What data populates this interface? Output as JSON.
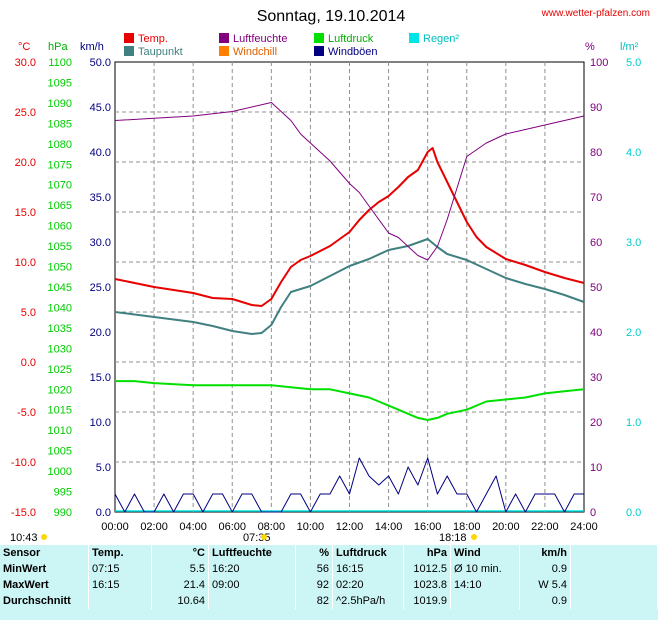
{
  "title": "Sonntag, 19.10.2014",
  "website": "www.wetter-pfalzen.com",
  "legend": [
    {
      "label": "Temp.",
      "color": "#e80000"
    },
    {
      "label": "Luftfeuchte",
      "color": "#800080"
    },
    {
      "label": "Luftdruck",
      "color": "#00e000"
    },
    {
      "label": "Regen²",
      "color": "#00e5e5"
    },
    {
      "label": "Taupunkt",
      "color": "#408080"
    },
    {
      "label": "Windchill",
      "color": "#ff8000"
    },
    {
      "label": "Windböen",
      "color": "#000080"
    }
  ],
  "axis_units": {
    "temp": "°C",
    "pressure": "hPa",
    "wind": "km/h",
    "humidity": "%",
    "rain": "l/m²"
  },
  "sun_marks": {
    "sunrise": "07:35",
    "sunset": "18:18",
    "now": "10:43"
  },
  "chart_data": {
    "type": "line",
    "x_label_ticks": [
      "00:00",
      "02:00",
      "04:00",
      "06:00",
      "08:00",
      "10:00",
      "12:00",
      "14:00",
      "16:00",
      "18:00",
      "20:00",
      "22:00",
      "24:00"
    ],
    "xlim": [
      0,
      24
    ],
    "axes": {
      "temp": {
        "range": [
          -15,
          30
        ],
        "ticks": [
          "30.0",
          "25.0",
          "20.0",
          "15.0",
          "10.0",
          "5.0",
          "0.0",
          "-5.0",
          "-10.0",
          "-15.0"
        ],
        "color": "#e80000"
      },
      "pressure": {
        "range": [
          990,
          1100
        ],
        "ticks": [
          "1100",
          "1095",
          "1090",
          "1085",
          "1080",
          "1075",
          "1070",
          "1065",
          "1060",
          "1055",
          "1050",
          "1045",
          "1040",
          "1035",
          "1030",
          "1025",
          "1020",
          "1015",
          "1010",
          "1005",
          "1000",
          "995",
          "990"
        ],
        "color": "#00cc00"
      },
      "wind": {
        "range": [
          0,
          50
        ],
        "ticks": [
          "50.0",
          "45.0",
          "40.0",
          "35.0",
          "30.0",
          "25.0",
          "20.0",
          "15.0",
          "10.0",
          "5.0",
          "0.0"
        ],
        "color": "#000080"
      },
      "humidity": {
        "range": [
          0,
          100
        ],
        "ticks": [
          "100",
          "90",
          "80",
          "70",
          "60",
          "50",
          "40",
          "30",
          "20",
          "10",
          "0"
        ],
        "color": "#800080"
      },
      "rain": {
        "range": [
          0,
          5
        ],
        "ticks": [
          "5.0",
          "4.0",
          "3.0",
          "2.0",
          "1.0",
          "0.0"
        ],
        "color": "#00cccc"
      }
    },
    "series": [
      {
        "name": "Temp.",
        "axis": "temp",
        "color": "#e80000",
        "x": [
          0,
          2,
          4,
          5,
          6,
          7,
          7.5,
          8,
          8.5,
          9,
          9.5,
          10,
          11,
          12,
          12.5,
          13,
          13.5,
          14,
          14.5,
          15,
          15.5,
          16,
          16.25,
          16.5,
          17,
          17.5,
          18,
          18.5,
          19,
          20,
          21,
          22,
          23,
          24
        ],
        "y": [
          8.3,
          7.5,
          6.9,
          6.4,
          6.3,
          5.7,
          5.6,
          6.3,
          8.0,
          9.5,
          10.2,
          10.6,
          11.6,
          13.0,
          14.2,
          15.2,
          16.0,
          16.6,
          17.5,
          18.5,
          19.2,
          21.0,
          21.4,
          20.0,
          18.0,
          16.0,
          14.0,
          12.5,
          11.5,
          10.3,
          9.7,
          9.0,
          8.4,
          7.9
        ]
      },
      {
        "name": "Taupunkt",
        "axis": "temp",
        "color": "#408080",
        "x": [
          0,
          2,
          4,
          5,
          6,
          7,
          7.5,
          8,
          8.5,
          9,
          10,
          11,
          12,
          13,
          14,
          15,
          16,
          16.5,
          17,
          18,
          19,
          20,
          21,
          22,
          23,
          24
        ],
        "y": [
          5.0,
          4.5,
          4.0,
          3.6,
          3.1,
          2.8,
          2.9,
          3.7,
          5.5,
          7.0,
          7.6,
          8.6,
          9.6,
          10.3,
          11.2,
          11.6,
          12.3,
          11.5,
          10.8,
          10.2,
          9.3,
          8.4,
          7.8,
          7.3,
          6.7,
          6.0
        ]
      },
      {
        "name": "Luftfeuchte",
        "axis": "humidity",
        "color": "#800080",
        "x": [
          0,
          2,
          4,
          6,
          8,
          9,
          9.5,
          10,
          11,
          12,
          12.5,
          13,
          13.5,
          14,
          14.5,
          15,
          15.5,
          16,
          16.5,
          17,
          17.5,
          18,
          19,
          20,
          21,
          22,
          23,
          24
        ],
        "y": [
          87,
          87.5,
          88,
          89,
          91,
          87,
          84,
          82,
          78,
          73,
          71,
          68,
          65,
          62,
          61,
          59,
          57,
          56,
          59,
          65,
          72,
          79,
          82,
          84,
          85,
          86,
          87,
          88
        ]
      },
      {
        "name": "Luftdruck",
        "axis": "pressure",
        "color": "#00e000",
        "x": [
          0,
          1,
          2,
          4,
          6,
          8,
          10,
          11,
          12,
          13,
          13.5,
          14,
          14.5,
          15,
          15.5,
          16,
          16.5,
          17,
          18,
          19,
          20,
          21,
          22,
          23,
          24
        ],
        "y": [
          1022,
          1022,
          1021.5,
          1021,
          1021,
          1021,
          1020,
          1020,
          1019,
          1018,
          1017,
          1016,
          1015,
          1014,
          1013,
          1012.5,
          1013,
          1014,
          1015,
          1017,
          1017.5,
          1018,
          1019,
          1019.5,
          1020
        ]
      },
      {
        "name": "Windböen",
        "axis": "wind",
        "color": "#000080",
        "x": [
          0,
          0.5,
          1,
          1.5,
          2,
          2.5,
          3,
          3.5,
          4,
          4.5,
          5,
          5.5,
          6,
          6.5,
          7,
          7.5,
          8,
          8.5,
          9,
          9.5,
          10,
          10.5,
          11,
          11.5,
          12,
          12.5,
          13,
          13.5,
          14,
          14.5,
          15,
          15.5,
          16,
          16.5,
          17,
          17.5,
          18,
          18.5,
          19,
          19.5,
          20,
          20.5,
          21,
          21.5,
          22,
          22.5,
          23,
          23.5,
          24
        ],
        "y": [
          2,
          0,
          2,
          0,
          0,
          2,
          0,
          2,
          2,
          0,
          2,
          2,
          0,
          2,
          2,
          0,
          0,
          0,
          2,
          2,
          0,
          2,
          2,
          4,
          2,
          6,
          4,
          3,
          4,
          2,
          5,
          3,
          6,
          2,
          4,
          2,
          2,
          0,
          2,
          4,
          0,
          2,
          0,
          2,
          2,
          2,
          0,
          2,
          2
        ]
      }
    ]
  },
  "stats": {
    "header": {
      "sensor": "Sensor",
      "temp": "Temp.",
      "temp_unit": "°C",
      "hum": "Luftfeuchte",
      "hum_unit": "%",
      "press": "Luftdruck",
      "press_unit": "hPa",
      "wind": "Wind",
      "wind_unit": "km/h"
    },
    "rows": [
      {
        "label": "MinWert",
        "temp_time": "07:15",
        "temp_val": "5.5",
        "hum_time": "16:20",
        "hum_val": "56",
        "press_time": "16:15",
        "press_val": "1012.5",
        "wind_time": "Ø 10 min.",
        "wind_val": "0.9"
      },
      {
        "label": "MaxWert",
        "temp_time": "16:15",
        "temp_val": "21.4",
        "hum_time": "09:00",
        "hum_val": "92",
        "press_time": "02:20",
        "press_val": "1023.8",
        "wind_time": "14:10",
        "wind_val": "W 5.4"
      },
      {
        "label": "Durchschnitt",
        "temp_time": "",
        "temp_val": "10.64",
        "hum_time": "",
        "hum_val": "82",
        "press_time": "^2.5hPa/h",
        "press_val": "1019.9",
        "wind_time": "",
        "wind_val": "0.9"
      }
    ]
  }
}
